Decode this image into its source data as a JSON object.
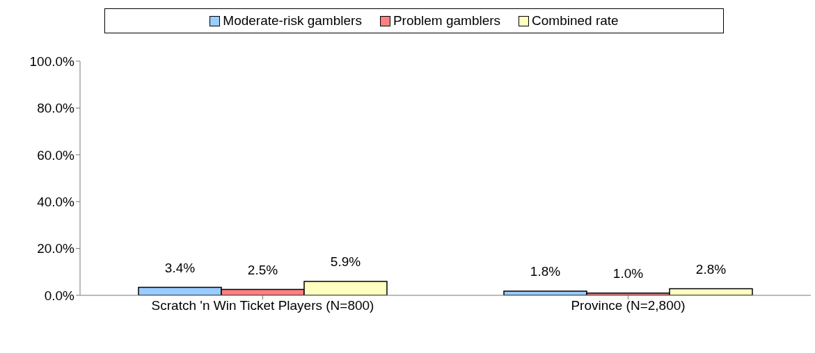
{
  "chart_data": {
    "type": "bar",
    "categories": [
      "Scratch 'n Win Ticket Players (N=800)",
      "Province (N=2,800)"
    ],
    "series": [
      {
        "name": "Moderate-risk gamblers",
        "color": "#99ccff",
        "values": [
          3.4,
          1.8
        ],
        "value_labels": [
          "3.4%",
          "1.8%"
        ]
      },
      {
        "name": "Problem gamblers",
        "color": "#ff8080",
        "values": [
          2.5,
          1.0
        ],
        "value_labels": [
          "2.5%",
          "1.0%"
        ]
      },
      {
        "name": "Combined rate",
        "color": "#ffffc0",
        "values": [
          5.9,
          2.8
        ],
        "value_labels": [
          "5.9%",
          "2.8%"
        ]
      }
    ],
    "ylim": [
      0,
      100
    ],
    "yticks": [
      {
        "value": 0,
        "label": "0.0%"
      },
      {
        "value": 20,
        "label": "20.0%"
      },
      {
        "value": 40,
        "label": "40.0%"
      },
      {
        "value": 60,
        "label": "60.0%"
      },
      {
        "value": 80,
        "label": "80.0%"
      },
      {
        "value": 100,
        "label": "100.0%"
      }
    ],
    "grid": false,
    "legend": "top"
  }
}
